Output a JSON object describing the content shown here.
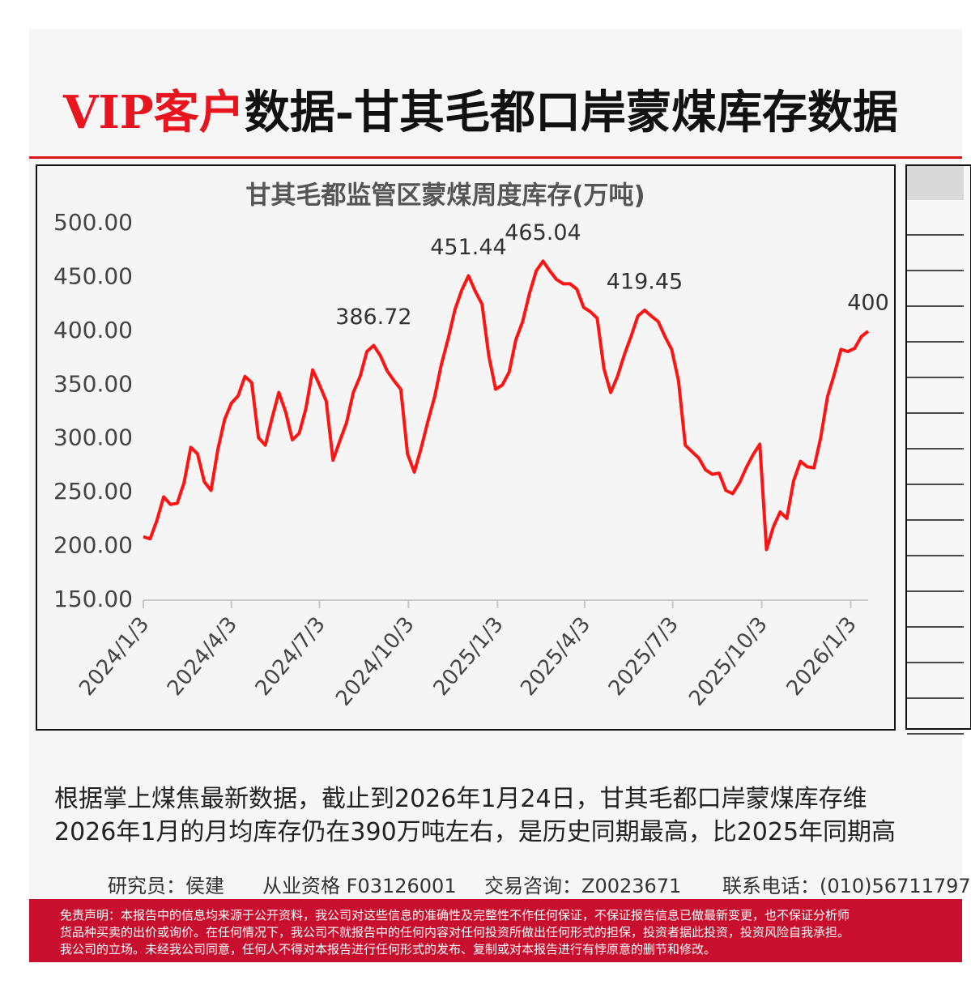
{
  "header": {
    "title_highlight": "VIP客户",
    "title_rest": "数据-甘其毛都口岸蒙煤库存数据"
  },
  "chart_data": {
    "type": "line",
    "title": "甘其毛都监管区蒙煤周度库存(万吨)",
    "color": "#ff1414",
    "x": [
      "2024/1/3",
      "2024/1/10",
      "2024/1/17",
      "2024/1/24",
      "2024/1/31",
      "2024/2/7",
      "2024/2/14",
      "2024/2/21",
      "2024/2/28",
      "2024/3/6",
      "2024/3/13",
      "2024/3/20",
      "2024/3/27",
      "2024/4/3",
      "2024/4/10",
      "2024/4/17",
      "2024/4/24",
      "2024/5/1",
      "2024/5/8",
      "2024/5/15",
      "2024/5/22",
      "2024/5/29",
      "2024/6/5",
      "2024/6/12",
      "2024/6/19",
      "2024/6/26",
      "2024/7/3",
      "2024/7/10",
      "2024/7/17",
      "2024/7/24",
      "2024/7/31",
      "2024/8/7",
      "2024/8/14",
      "2024/8/21",
      "2024/8/28",
      "2024/9/4",
      "2024/9/11",
      "2024/9/18",
      "2024/9/25",
      "2024/10/2",
      "2024/10/9",
      "2024/10/16",
      "2024/10/23",
      "2024/10/30",
      "2024/11/6",
      "2024/11/13",
      "2024/11/20",
      "2024/11/27",
      "2024/12/4",
      "2024/12/11",
      "2024/12/18",
      "2024/12/25",
      "2025/1/1",
      "2025/1/8",
      "2025/1/15",
      "2025/1/22",
      "2025/1/29",
      "2025/2/5",
      "2025/2/12",
      "2025/2/19",
      "2025/2/26",
      "2025/3/5",
      "2025/3/12",
      "2025/3/19",
      "2025/3/26",
      "2025/4/2",
      "2025/4/9",
      "2025/4/16",
      "2025/4/23",
      "2025/4/30",
      "2025/5/7",
      "2025/5/14",
      "2025/5/21",
      "2025/5/28",
      "2025/6/4",
      "2025/6/11",
      "2025/6/18",
      "2025/6/25",
      "2025/7/2",
      "2025/7/9",
      "2025/7/16",
      "2025/7/23",
      "2025/7/30",
      "2025/8/6",
      "2025/8/13",
      "2025/8/20",
      "2025/8/27",
      "2025/9/3",
      "2025/9/10",
      "2025/9/17",
      "2025/9/24",
      "2025/10/1",
      "2025/10/8",
      "2025/10/15",
      "2025/10/22",
      "2025/10/29",
      "2025/11/5",
      "2025/11/12",
      "2025/11/19",
      "2025/11/26",
      "2025/12/3",
      "2025/12/10",
      "2025/12/17",
      "2025/12/24",
      "2025/12/31",
      "2026/1/7",
      "2026/1/14",
      "2026/1/21"
    ],
    "values": [
      209,
      207,
      224,
      246,
      239,
      240,
      259,
      292,
      286,
      260,
      252,
      290,
      318,
      333,
      340,
      358,
      352,
      301,
      294,
      319,
      343,
      325,
      299,
      305,
      328,
      364,
      350,
      335,
      280,
      298,
      315,
      343,
      358,
      381,
      386.72,
      377,
      363,
      354,
      346,
      286,
      269,
      291,
      316,
      339,
      369,
      393,
      420,
      438,
      451.44,
      437,
      425,
      377,
      346,
      350,
      362,
      392,
      409,
      435,
      456,
      465.04,
      456,
      448,
      444,
      444,
      439,
      422,
      418,
      412,
      365,
      343,
      358,
      378,
      395,
      414,
      419.45,
      414,
      409,
      395,
      383,
      354,
      294,
      288,
      282,
      271,
      267,
      268,
      252,
      249,
      259,
      273,
      285,
      295,
      197,
      218,
      232,
      226,
      261,
      279,
      274,
      273,
      301,
      339,
      360,
      383,
      381,
      384,
      395,
      400
    ],
    "value_labels": [
      null,
      null,
      null,
      null,
      null,
      null,
      null,
      null,
      null,
      null,
      null,
      null,
      null,
      null,
      null,
      null,
      null,
      null,
      null,
      null,
      null,
      null,
      null,
      null,
      null,
      null,
      null,
      null,
      null,
      null,
      null,
      null,
      null,
      null,
      "386.72",
      null,
      null,
      null,
      null,
      null,
      null,
      null,
      null,
      null,
      null,
      null,
      null,
      null,
      "451.44",
      null,
      null,
      null,
      null,
      null,
      null,
      null,
      null,
      null,
      null,
      "465.04",
      null,
      null,
      null,
      null,
      null,
      null,
      null,
      null,
      null,
      null,
      null,
      null,
      null,
      null,
      "419.45",
      null,
      null,
      null,
      null,
      null,
      null,
      null,
      null,
      null,
      null,
      null,
      null,
      null,
      null,
      null,
      null,
      null,
      null,
      null,
      null,
      null,
      null,
      null,
      null,
      null,
      null,
      null,
      null,
      null,
      null,
      null,
      null,
      "400"
    ],
    "xlim": [
      "2024/1/3",
      "2026/1/21"
    ],
    "xticks": [
      "2024/1/3",
      "2024/4/3",
      "2024/7/3",
      "2024/10/3",
      "2025/1/3",
      "2025/4/3",
      "2025/7/3",
      "2025/10/3",
      "2026/1/3"
    ],
    "ylim": [
      150,
      500
    ],
    "yticks": [
      {
        "value": 150,
        "label": "150.00"
      },
      {
        "value": 200,
        "label": "200.00"
      },
      {
        "value": 250,
        "label": "250.00"
      },
      {
        "value": 300,
        "label": "300.00"
      },
      {
        "value": 350,
        "label": "350.00"
      },
      {
        "value": 400,
        "label": "400.00"
      },
      {
        "value": 450,
        "label": "450.00"
      },
      {
        "value": 500,
        "label": "500.00"
      }
    ]
  },
  "body": {
    "lines": [
      "根据掌上煤焦最新数据，截止到2026年1月24日，甘其毛都口岸蒙煤库存维",
      "2026年1月的月均库存仍在390万吨左右，是历史同期最高，比2025年同期高"
    ]
  },
  "footer": {
    "researcher": "研究员：侯建",
    "qualification": "从业资格 F03126001",
    "consulting": "交易咨询：Z0023671",
    "phone": "联系电话：(010)56711797",
    "disclaimer": [
      "免责声明：本报告中的信息均来源于公开资料，我公司对这些信息的准确性及完整性不作任何保证，不保证报告信息已做最新变更，也不保证分析师",
      "货品种买卖的出价或询价。在任何情况下，我公司不就报告中的任何内容对任何投资所做出任何形式的担保，投资者据此投资，投资风险自我承担。",
      "我公司的立场。未经我公司同意，任何人不得对本报告进行任何形式的发布、复制或对本报告进行有悖原意的删节和修改。"
    ]
  }
}
